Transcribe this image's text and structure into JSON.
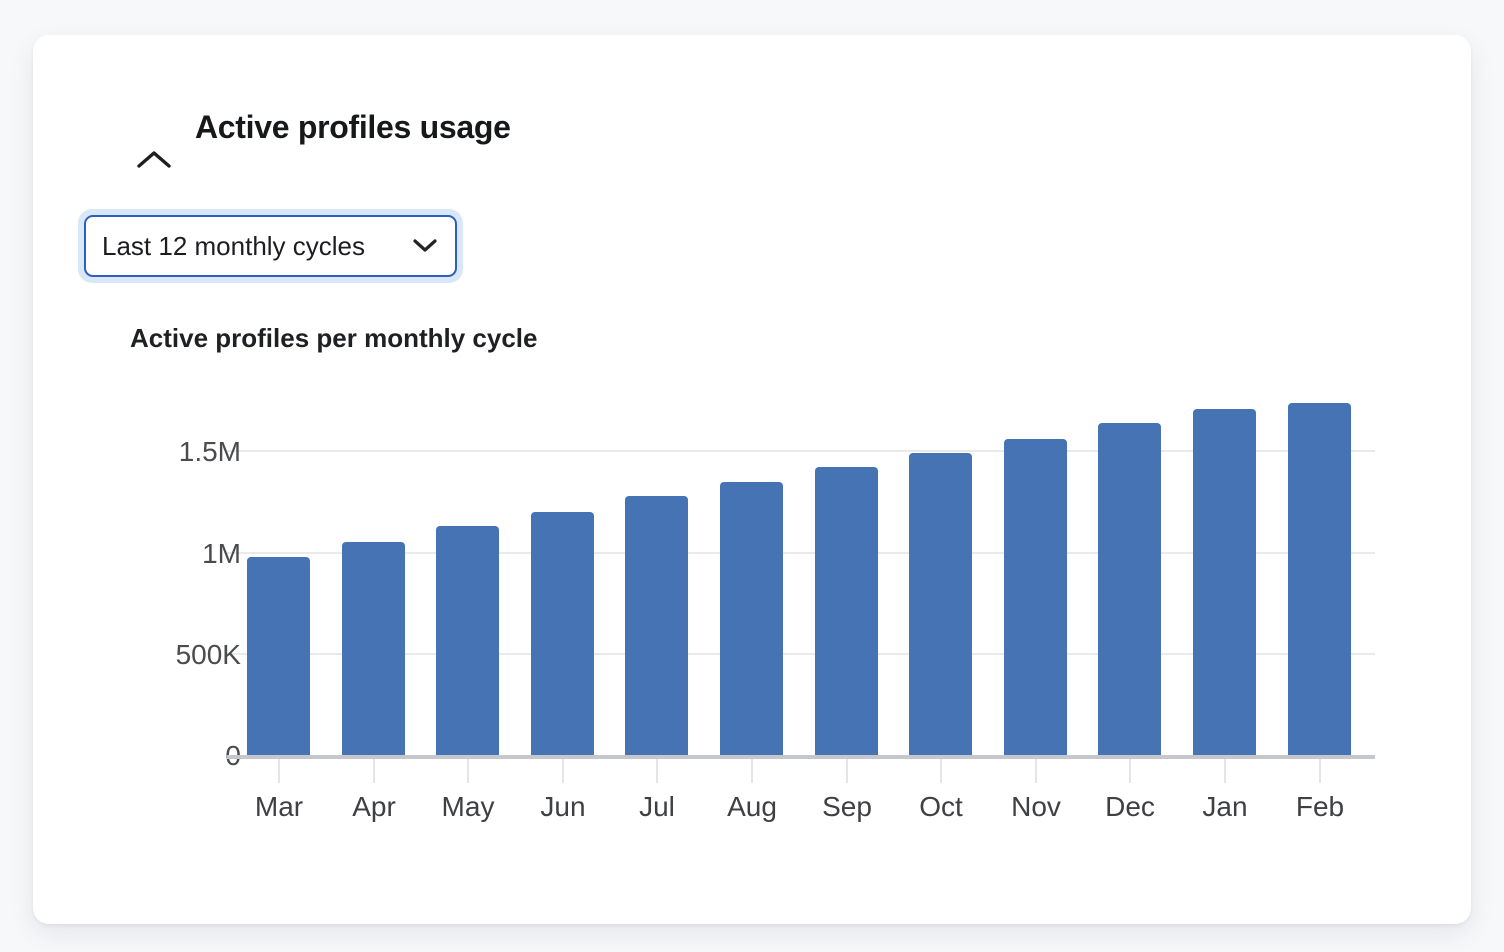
{
  "header": {
    "title": "Active profiles usage",
    "collapse_icon": "chevron-up"
  },
  "filter": {
    "value": "Last 12 monthly cycles",
    "icon": "chevron-down"
  },
  "colors": {
    "bar": "#4673b4",
    "dropdown_border": "#2f5fbe",
    "dropdown_focus_ring": "#d9e8f9",
    "card_background": "#ffffff",
    "page_background": "#f7f8fa"
  },
  "chart_data": {
    "type": "bar",
    "title": "Active profiles per monthly cycle",
    "categories": [
      "Mar",
      "Apr",
      "May",
      "Jun",
      "Jul",
      "Aug",
      "Sep",
      "Oct",
      "Nov",
      "Dec",
      "Jan",
      "Feb"
    ],
    "values": [
      980000,
      1050000,
      1130000,
      1200000,
      1280000,
      1350000,
      1420000,
      1490000,
      1560000,
      1640000,
      1710000,
      1740000
    ],
    "series_name": "Active profiles",
    "xlabel": "",
    "ylabel": "",
    "ylim": [
      0,
      1800000
    ],
    "y_ticks": [
      {
        "label": "1.5M",
        "value": 1500000
      },
      {
        "label": "1M",
        "value": 1000000
      },
      {
        "label": "500K",
        "value": 500000
      },
      {
        "label": "0",
        "value": 0
      }
    ],
    "grid": true,
    "legend_position": "none"
  }
}
